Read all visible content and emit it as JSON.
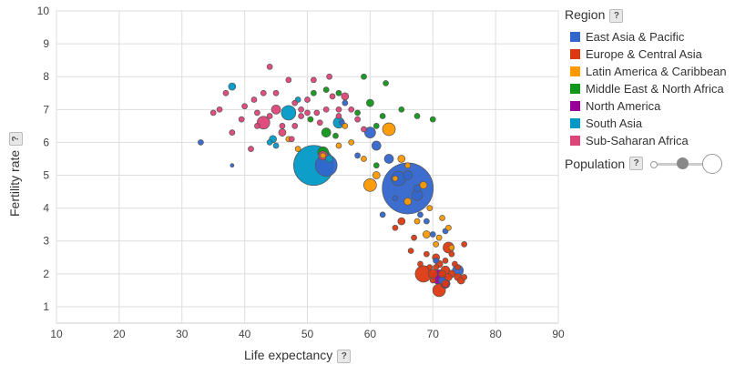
{
  "chart_data": {
    "type": "scatter",
    "xlabel": "Life expectancy",
    "ylabel": "Fertility rate",
    "xlim": [
      10,
      90
    ],
    "ylim": [
      0.5,
      10
    ],
    "xticks": [
      10,
      20,
      30,
      40,
      50,
      60,
      70,
      80,
      90
    ],
    "yticks": [
      1,
      2,
      3,
      4,
      5,
      6,
      7,
      8,
      9,
      10
    ],
    "grid": true,
    "legend_title": "Region",
    "legend_position": "right",
    "size_label": "Population",
    "series": [
      {
        "name": "East Asia & Pacific",
        "color": "#3366cc",
        "points": [
          [
            66,
            4.6,
            28
          ],
          [
            53,
            5.3,
            12
          ],
          [
            60,
            6.3,
            6
          ],
          [
            33,
            6,
            3
          ],
          [
            38,
            5.3,
            2
          ],
          [
            63,
            5.5,
            5
          ],
          [
            64.5,
            4.9,
            8
          ],
          [
            66,
            5,
            5
          ],
          [
            67.5,
            4.4,
            6
          ],
          [
            61,
            5.9,
            5
          ],
          [
            62,
            3.8,
            3
          ],
          [
            68,
            3.8,
            3
          ],
          [
            70,
            3.2,
            3
          ],
          [
            72,
            3.3,
            3
          ],
          [
            74,
            2.1,
            6
          ],
          [
            71.5,
            1.8,
            4
          ],
          [
            70.5,
            2.4,
            3
          ],
          [
            67.5,
            4.6,
            4
          ],
          [
            56,
            7.2,
            3
          ],
          [
            55.5,
            6.6,
            3
          ],
          [
            58,
            5.6,
            3
          ],
          [
            64,
            4.3,
            3
          ],
          [
            69,
            3.6,
            3
          ]
        ]
      },
      {
        "name": "Europe & Central Asia",
        "color": "#dc3912",
        "points": [
          [
            68.5,
            2.0,
            9
          ],
          [
            71,
            1.5,
            7
          ],
          [
            72.5,
            2.8,
            6
          ],
          [
            72,
            2.1,
            5
          ],
          [
            70,
            2.0,
            5
          ],
          [
            73,
            2.0,
            4
          ],
          [
            74,
            1.9,
            4
          ],
          [
            74.5,
            1.8,
            4
          ],
          [
            72,
            1.7,
            4
          ],
          [
            70.5,
            2.5,
            4
          ],
          [
            65,
            3.6,
            4
          ],
          [
            64,
            3.4,
            3
          ],
          [
            67,
            3.1,
            3
          ],
          [
            69,
            2.6,
            3
          ],
          [
            73.5,
            2.3,
            3
          ],
          [
            75,
            2.9,
            3
          ],
          [
            71,
            2.3,
            4
          ],
          [
            69.5,
            2.2,
            3
          ],
          [
            72.5,
            1.9,
            4
          ],
          [
            70,
            1.8,
            3
          ],
          [
            68,
            2.3,
            3
          ],
          [
            73,
            2.6,
            3
          ],
          [
            74,
            2.2,
            3
          ],
          [
            71.5,
            2.0,
            4
          ],
          [
            70.5,
            2.2,
            3
          ],
          [
            72,
            2.4,
            3
          ],
          [
            66.5,
            2.7,
            3
          ],
          [
            75,
            1.9,
            3
          ]
        ]
      },
      {
        "name": "Latin America & Caribbean",
        "color": "#ff9900",
        "points": [
          [
            60,
            4.7,
            7
          ],
          [
            63,
            6.4,
            7
          ],
          [
            61,
            5,
            4
          ],
          [
            65,
            5.5,
            4
          ],
          [
            66,
            4.2,
            4
          ],
          [
            68.5,
            4.7,
            4
          ],
          [
            69,
            3.2,
            4
          ],
          [
            71.5,
            3.7,
            3
          ],
          [
            71,
            3.1,
            3
          ],
          [
            73,
            2.8,
            3
          ],
          [
            57,
            6.0,
            3
          ],
          [
            52.5,
            5.6,
            3
          ],
          [
            55,
            5.9,
            3
          ],
          [
            59,
            5.5,
            3
          ],
          [
            66,
            5.3,
            3
          ],
          [
            67.5,
            3.6,
            3
          ],
          [
            70.5,
            2.9,
            3
          ],
          [
            72.5,
            3.4,
            3
          ],
          [
            69.5,
            4.0,
            3
          ],
          [
            56,
            6.5,
            3
          ],
          [
            47,
            6.1,
            3
          ],
          [
            48.5,
            5.8,
            3
          ],
          [
            64,
            4.9,
            3
          ]
        ]
      },
      {
        "name": "Middle East & North Africa",
        "color": "#109618",
        "points": [
          [
            52.5,
            5.7,
            6
          ],
          [
            53,
            6.3,
            5
          ],
          [
            51,
            7.5,
            3
          ],
          [
            53,
            7.6,
            3
          ],
          [
            54.5,
            6.2,
            3
          ],
          [
            58,
            6.9,
            3
          ],
          [
            60,
            7.2,
            4
          ],
          [
            61,
            6.5,
            3
          ],
          [
            62,
            6.8,
            3
          ],
          [
            61,
            5.3,
            3
          ],
          [
            59,
            8.0,
            3
          ],
          [
            62.5,
            7.8,
            3
          ],
          [
            65,
            7.0,
            3
          ],
          [
            67.5,
            6.8,
            3
          ],
          [
            70,
            6.7,
            3
          ],
          [
            55,
            7.5,
            3
          ],
          [
            50.5,
            6.7,
            3
          ]
        ]
      },
      {
        "name": "North America",
        "color": "#990099",
        "points": [
          [
            71,
            1.9,
            8
          ],
          [
            72,
            1.7,
            5
          ]
        ]
      },
      {
        "name": "South Asia",
        "color": "#0099c6",
        "points": [
          [
            51,
            5.3,
            22
          ],
          [
            47,
            6.9,
            8
          ],
          [
            55,
            6.6,
            6
          ],
          [
            44.5,
            6.1,
            4
          ],
          [
            38,
            7.7,
            4
          ],
          [
            44,
            6.0,
            3
          ],
          [
            48.5,
            7.3,
            3
          ],
          [
            53.5,
            5.5,
            4
          ],
          [
            45,
            5.9,
            3
          ]
        ]
      },
      {
        "name": "Sub-Saharan Africa",
        "color": "#dd4477",
        "points": [
          [
            43,
            6.6,
            7
          ],
          [
            52.5,
            5.6,
            5
          ],
          [
            45,
            7,
            5
          ],
          [
            46,
            6.3,
            4
          ],
          [
            48,
            6.5,
            3
          ],
          [
            44,
            8.3,
            3
          ],
          [
            37,
            7.5,
            3
          ],
          [
            35,
            6.9,
            3
          ],
          [
            41.5,
            7.3,
            3
          ],
          [
            42,
            6.9,
            3
          ],
          [
            40,
            7.1,
            3
          ],
          [
            39.5,
            6.7,
            3
          ],
          [
            38,
            6.3,
            3
          ],
          [
            41,
            5.8,
            3
          ],
          [
            43,
            7.5,
            3
          ],
          [
            45,
            7.5,
            3
          ],
          [
            47,
            7.9,
            3
          ],
          [
            49,
            7.0,
            3
          ],
          [
            50,
            7.3,
            3
          ],
          [
            51.5,
            6.9,
            3
          ],
          [
            53,
            7.0,
            3
          ],
          [
            54,
            7.4,
            3
          ],
          [
            56,
            7.4,
            4
          ],
          [
            53.5,
            8.0,
            3
          ],
          [
            55,
            7.0,
            3
          ],
          [
            50,
            6.9,
            3
          ],
          [
            46,
            6.5,
            3
          ],
          [
            44,
            6.8,
            3
          ],
          [
            36,
            7.0,
            3
          ],
          [
            48,
            7.2,
            3
          ],
          [
            52,
            6.6,
            3
          ],
          [
            51,
            7.9,
            3
          ],
          [
            57,
            7.0,
            3
          ],
          [
            58,
            6.7,
            3
          ],
          [
            59,
            6.4,
            3
          ],
          [
            47.5,
            6.1,
            3
          ],
          [
            42,
            6.5,
            3
          ],
          [
            49,
            6.8,
            3
          ],
          [
            55,
            6.8,
            3
          ]
        ]
      }
    ]
  },
  "ui": {
    "help_label": "?"
  }
}
